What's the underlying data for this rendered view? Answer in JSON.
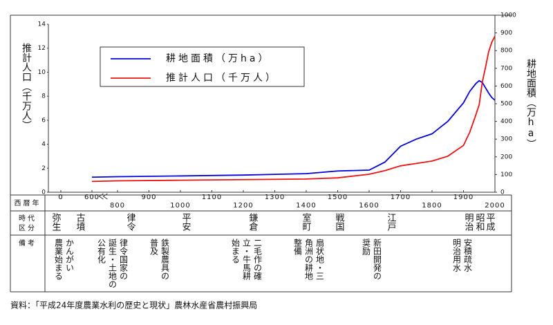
{
  "chart_data": {
    "type": "line",
    "axis_break": true,
    "ylabel": "推計人口（千万人）",
    "y2label": "耕地面積（万ha）",
    "x": [
      600,
      800,
      1000,
      1200,
      1400,
      1500,
      1600,
      1650,
      1700,
      1750,
      1800,
      1850,
      1900,
      1920,
      1940,
      1950,
      1960,
      1970,
      1980,
      1990,
      2000
    ],
    "series": [
      {
        "name": "耕地面積（万ha）",
        "color": "#0000dd",
        "axis": "y2",
        "values": [
          85,
          88,
          92,
          97,
          105,
          120,
          125,
          170,
          260,
          300,
          330,
          400,
          505,
          570,
          615,
          630,
          620,
          590,
          560,
          535,
          520
        ]
      },
      {
        "name": "推計人口（千万人）",
        "color": "#ee1111",
        "axis": "y",
        "values": [
          0.9,
          0.95,
          1.0,
          1.05,
          1.1,
          1.2,
          1.5,
          1.8,
          2.2,
          2.4,
          2.6,
          3.0,
          3.9,
          5.0,
          6.5,
          7.3,
          9.2,
          10.4,
          11.7,
          12.5,
          13.0
        ]
      }
    ],
    "xlim": [
      0,
      2000
    ],
    "xticks": [
      0,
      600,
      800,
      900,
      1000,
      1100,
      1200,
      1300,
      1400,
      1500,
      1600,
      1700,
      1800,
      1900,
      2000
    ],
    "ylim": [
      0,
      14
    ],
    "yticks": [
      0,
      2,
      4,
      6,
      8,
      10,
      12,
      14
    ],
    "y2lim": [
      0,
      1000
    ],
    "y2ticks": [
      0,
      100,
      200,
      300,
      400,
      500,
      600,
      700,
      800,
      900,
      1000
    ],
    "row_labels": {
      "year": "西暦年",
      "era": [
        "時代",
        "区分"
      ],
      "notes": "備考"
    },
    "eras": [
      "弥生",
      "古墳",
      "律令",
      "平安",
      "鎌倉",
      "室町",
      "戦国",
      "江戸",
      "明治",
      "昭和",
      "平成"
    ],
    "notes": [
      [
        "かんがい",
        "農業始まる"
      ],
      [
        "律令国家の",
        "誕生・土地の",
        "公有化"
      ],
      [
        "鉄製農具の",
        "普及"
      ],
      [
        "二毛作の確",
        "立・牛馬耕",
        "始まる"
      ],
      [
        "扇状地・三",
        "角洲の耕地",
        "整備"
      ],
      [
        "新田開発の",
        "奨励"
      ],
      [
        "安積疏水",
        "明治用水"
      ]
    ],
    "source": "資料：「平成24年度農業水利の歴史と現状」農林水産省農村振興局"
  }
}
